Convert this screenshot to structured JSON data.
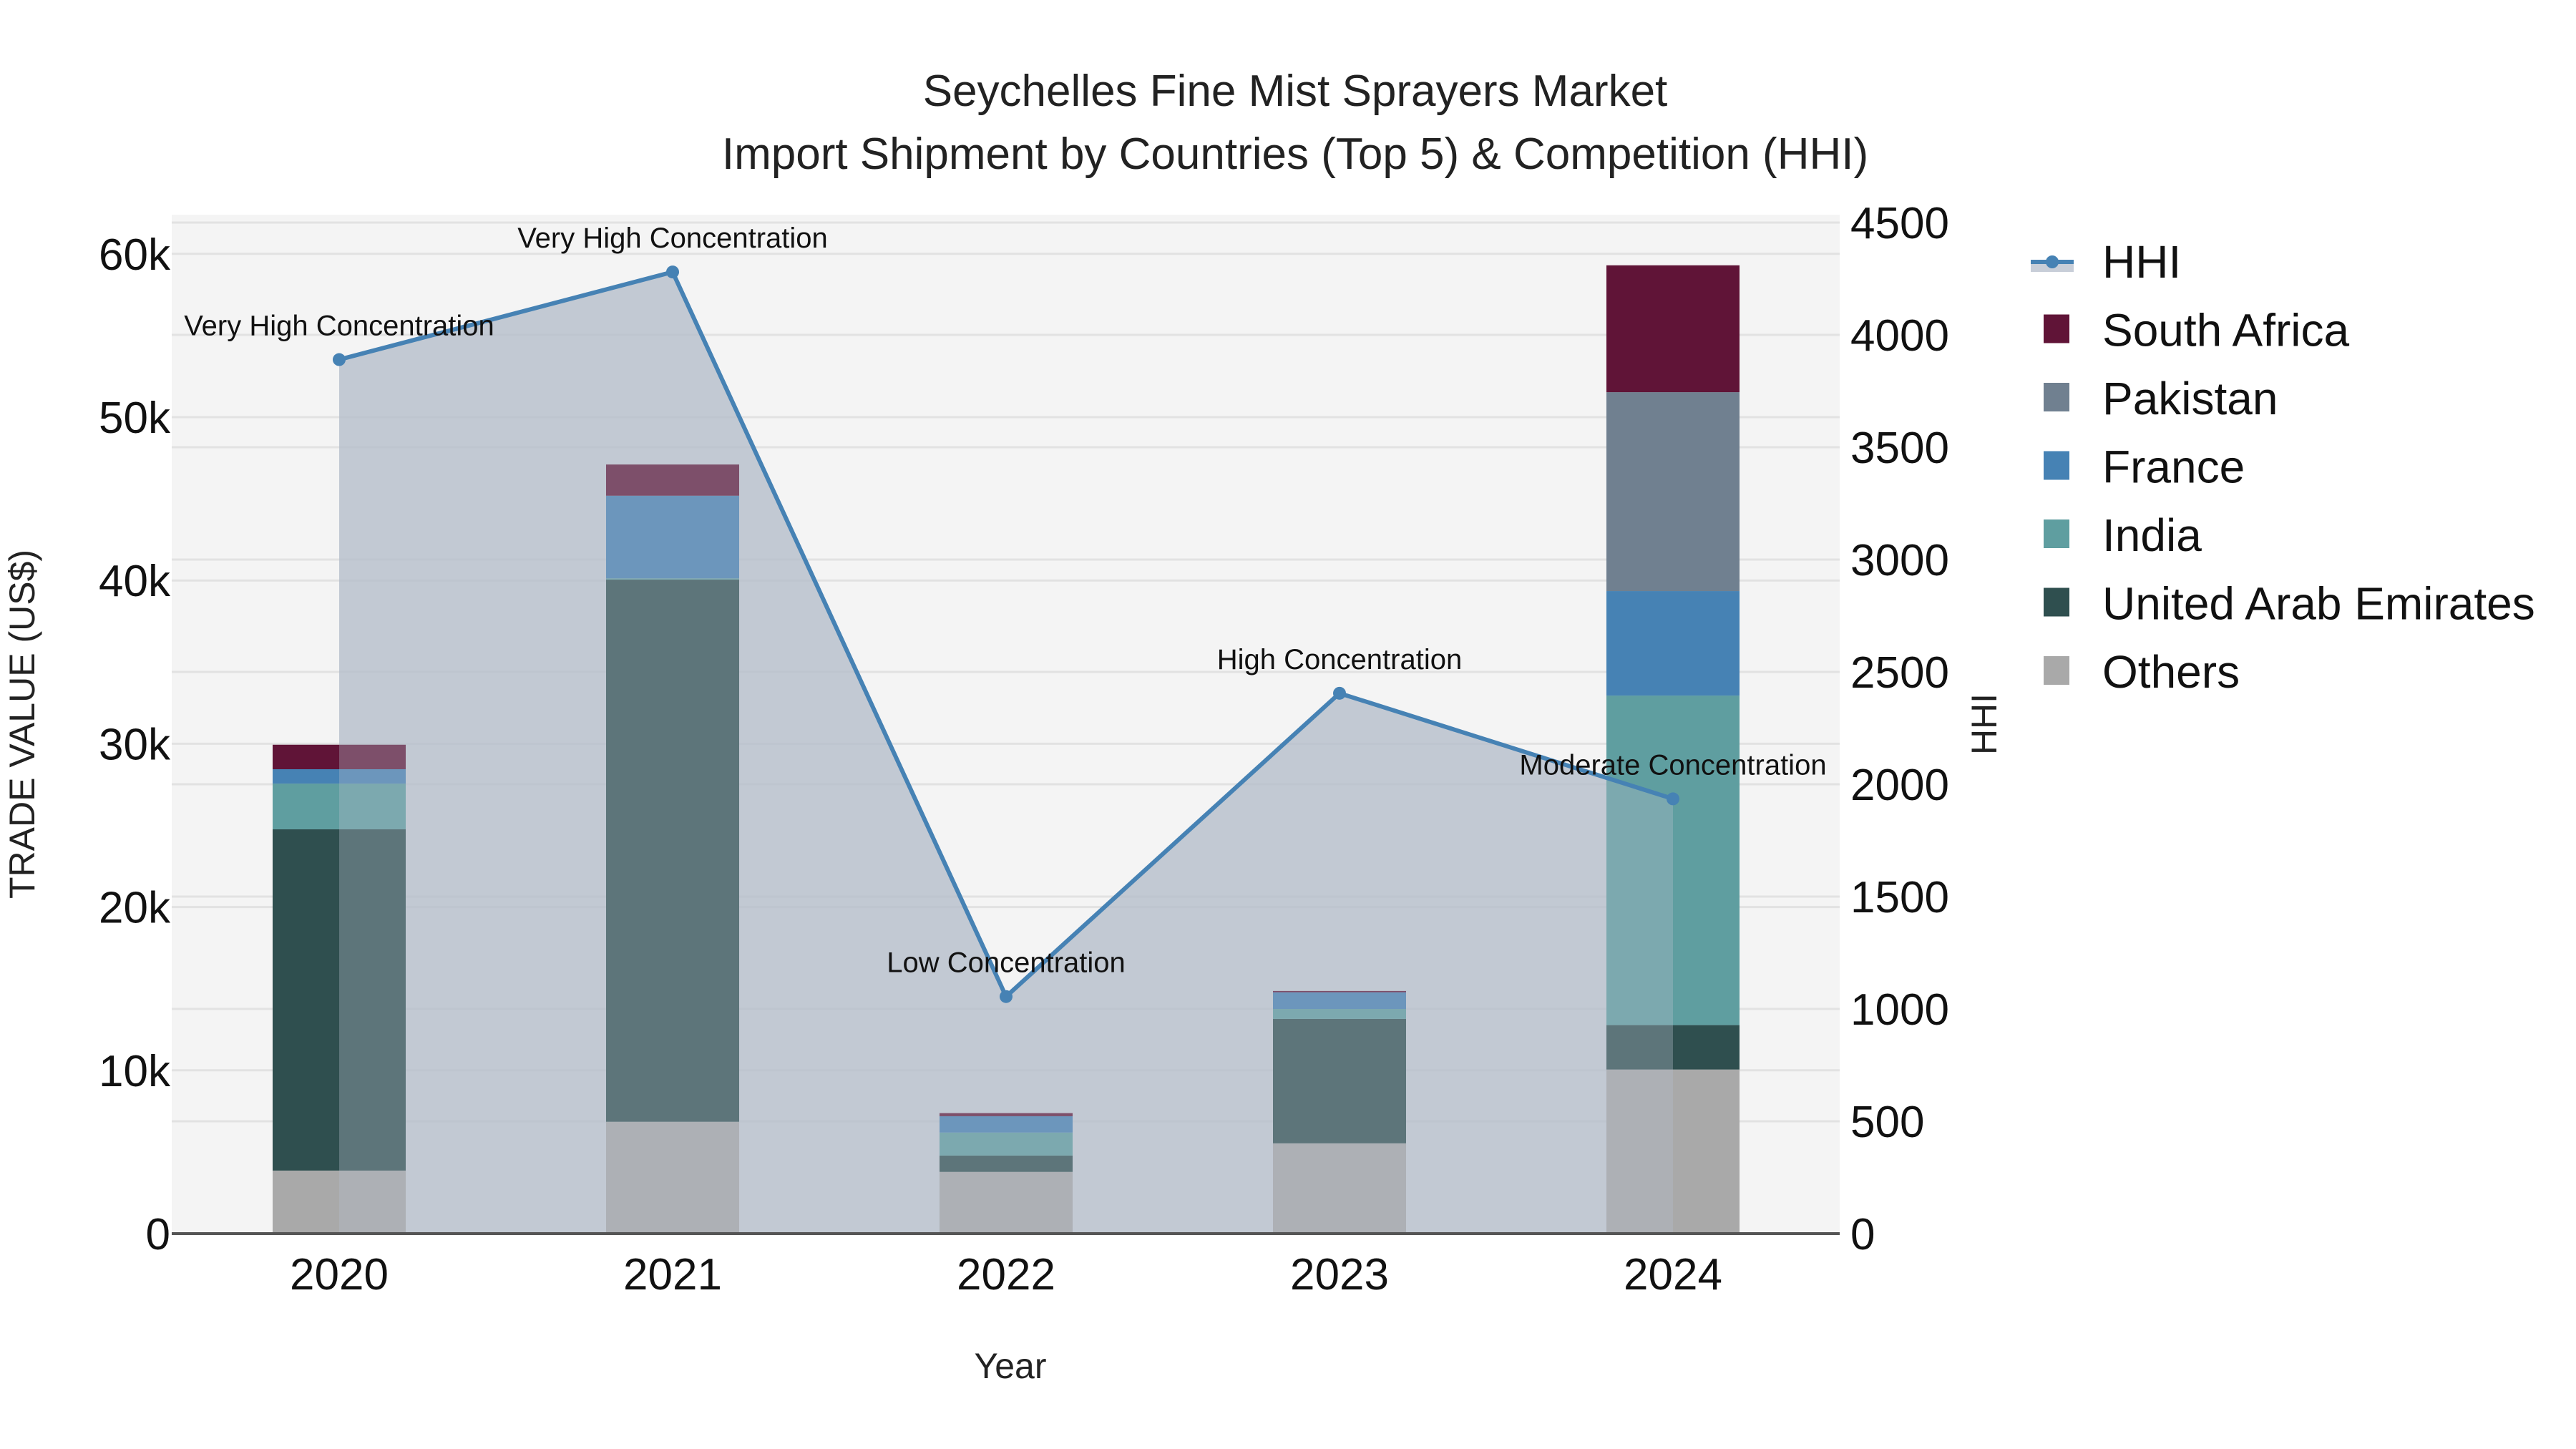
{
  "title": {
    "line1": "Seychelles Fine Mist Sprayers Market",
    "line2": "Import Shipment by Countries (Top 5) & Competition (HHI)"
  },
  "axes": {
    "x_title": "Year",
    "y_left_title": "TRADE VALUE (US$)",
    "y_right_title": "HHI",
    "y_left_ticks": [
      "0",
      "10k",
      "20k",
      "30k",
      "40k",
      "50k",
      "60k"
    ],
    "y_right_ticks": [
      "0",
      "500",
      "1000",
      "1500",
      "2000",
      "2500",
      "3000",
      "3500",
      "4000",
      "4500"
    ]
  },
  "legend": {
    "items": [
      {
        "label": "HHI",
        "color": "#4682b4",
        "type": "line"
      },
      {
        "label": "South Africa",
        "color": "#601437",
        "type": "bar"
      },
      {
        "label": "Pakistan",
        "color": "#708090",
        "type": "bar"
      },
      {
        "label": "France",
        "color": "#4682b4",
        "type": "bar"
      },
      {
        "label": "India",
        "color": "#5f9ea0",
        "type": "bar"
      },
      {
        "label": "United Arab Emirates",
        "color": "#2f4f4f",
        "type": "bar"
      },
      {
        "label": "Others",
        "color": "#a9a9a9",
        "type": "bar"
      }
    ]
  },
  "chart_data": {
    "type": "bar",
    "stacked": true,
    "title": "Seychelles Fine Mist Sprayers Market — Import Shipment by Countries (Top 5) & Competition (HHI)",
    "xlabel": "Year",
    "ylabel": "TRADE VALUE (US$)",
    "y2label": "HHI",
    "categories": [
      "2020",
      "2021",
      "2022",
      "2023",
      "2024"
    ],
    "ylim": [
      0,
      62000
    ],
    "y2lim": [
      0,
      4660
    ],
    "grid": true,
    "legend_position": "right",
    "series": [
      {
        "name": "Others",
        "color": "#a9a9a9",
        "values": [
          3860,
          6850,
          3780,
          5530,
          10050
        ]
      },
      {
        "name": "United Arab Emirates",
        "color": "#2f4f4f",
        "values": [
          20900,
          33200,
          1000,
          7620,
          2720
        ]
      },
      {
        "name": "India",
        "color": "#5f9ea0",
        "values": [
          2800,
          80,
          1410,
          610,
          20180
        ]
      },
      {
        "name": "France",
        "color": "#4682b4",
        "values": [
          880,
          5060,
          1000,
          1020,
          6400
        ]
      },
      {
        "name": "Pakistan",
        "color": "#708090",
        "values": [
          0,
          0,
          0,
          0,
          12180
        ]
      },
      {
        "name": "South Africa",
        "color": "#601437",
        "values": [
          1500,
          1910,
          190,
          80,
          7770
        ]
      }
    ],
    "line_series": {
      "name": "HHI",
      "axis": "right",
      "color": "#4682b4",
      "fill": "tozeroy",
      "values": [
        3890,
        4280,
        1055,
        2405,
        1935
      ],
      "annotations": [
        "Very High Concentration",
        "Very High Concentration",
        "Low Concentration",
        "High Concentration",
        "Moderate Concentration"
      ]
    }
  }
}
